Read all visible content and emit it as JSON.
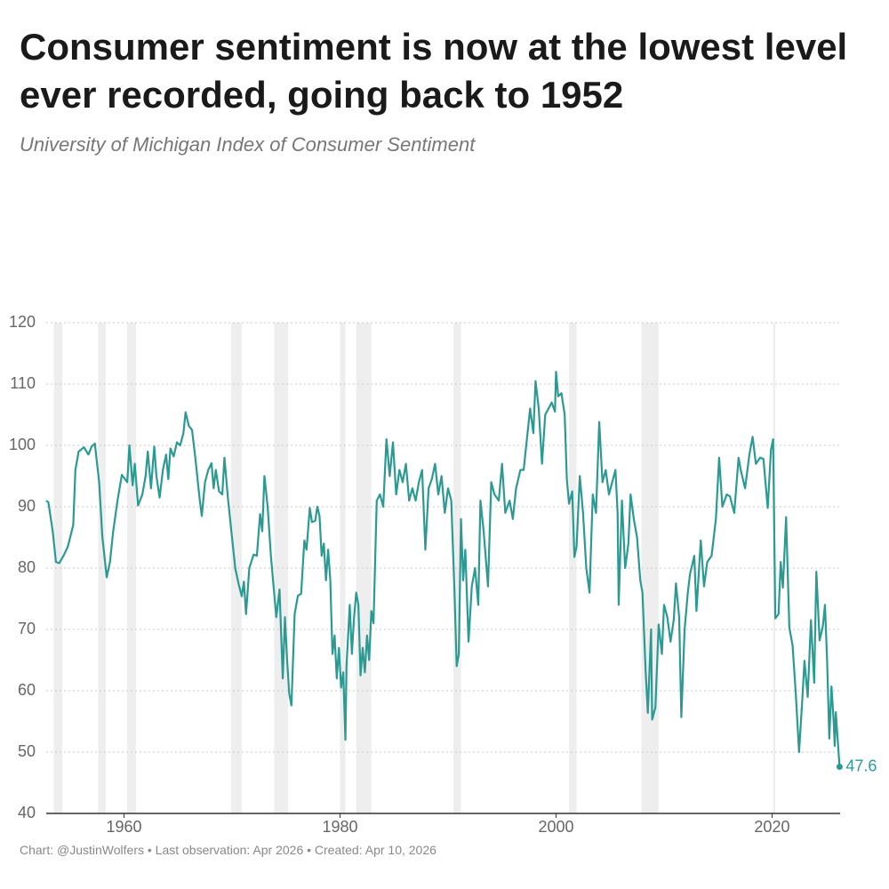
{
  "chart_data": {
    "type": "line",
    "title": "Consumer sentiment is now at the lowest level ever recorded, going back to 1952",
    "subtitle": "University of Michigan Index of Consumer Sentiment",
    "footer": "Chart: @JustinWolfers • Last observation: Apr 2026 • Created: Apr 10, 2026",
    "color": "#2b9a93",
    "grid": true,
    "xlim": [
      1952.8,
      2026.3
    ],
    "xticks": [
      1960,
      1980,
      2000,
      2020
    ],
    "ylim": [
      40,
      120
    ],
    "yticks": [
      40,
      50,
      60,
      70,
      80,
      90,
      100,
      110,
      120
    ],
    "recession_shading": [
      [
        1953.5,
        1954.3
      ],
      [
        1957.6,
        1958.3
      ],
      [
        1960.3,
        1961.1
      ],
      [
        1969.9,
        1970.9
      ],
      [
        1973.9,
        1975.2
      ],
      [
        1980.0,
        1980.5
      ],
      [
        1981.5,
        1982.9
      ],
      [
        1990.5,
        1991.2
      ],
      [
        2001.2,
        2001.9
      ],
      [
        2007.9,
        2009.5
      ],
      [
        2020.1,
        2020.3
      ]
    ],
    "x": [
      1952.8,
      1953.0,
      1953.4,
      1953.7,
      1954.0,
      1954.4,
      1954.8,
      1955.3,
      1955.5,
      1955.8,
      1956.3,
      1956.7,
      1957.0,
      1957.3,
      1957.7,
      1958.0,
      1958.4,
      1958.7,
      1959.0,
      1959.4,
      1959.8,
      1960.3,
      1960.5,
      1960.8,
      1961.0,
      1961.3,
      1961.7,
      1962.0,
      1962.2,
      1962.5,
      1962.8,
      1963.0,
      1963.3,
      1963.6,
      1963.9,
      1964.1,
      1964.3,
      1964.6,
      1964.9,
      1965.2,
      1965.5,
      1965.7,
      1966.0,
      1966.3,
      1966.6,
      1967.0,
      1967.2,
      1967.5,
      1967.8,
      1968.1,
      1968.3,
      1968.5,
      1968.8,
      1969.1,
      1969.3,
      1969.6,
      1970.0,
      1970.3,
      1970.6,
      1970.9,
      1971.1,
      1971.3,
      1971.6,
      1972.0,
      1972.3,
      1972.6,
      1972.8,
      1973.0,
      1973.3,
      1973.6,
      1973.9,
      1974.1,
      1974.4,
      1974.7,
      1974.9,
      1975.1,
      1975.3,
      1975.5,
      1975.8,
      1976.1,
      1976.4,
      1976.7,
      1976.9,
      1977.2,
      1977.4,
      1977.7,
      1977.9,
      1978.1,
      1978.3,
      1978.5,
      1978.7,
      1978.9,
      1979.1,
      1979.3,
      1979.5,
      1979.7,
      1979.9,
      1980.1,
      1980.3,
      1980.5,
      1980.6,
      1980.9,
      1981.1,
      1981.3,
      1981.5,
      1981.7,
      1981.9,
      1982.1,
      1982.3,
      1982.5,
      1982.7,
      1982.9,
      1983.1,
      1983.4,
      1983.7,
      1984.0,
      1984.3,
      1984.6,
      1984.9,
      1985.2,
      1985.5,
      1985.8,
      1986.1,
      1986.4,
      1986.7,
      1987.0,
      1987.3,
      1987.6,
      1987.9,
      1988.2,
      1988.5,
      1988.8,
      1989.1,
      1989.4,
      1989.7,
      1990.0,
      1990.3,
      1990.6,
      1990.8,
      1991.0,
      1991.2,
      1991.4,
      1991.6,
      1991.9,
      1992.2,
      1992.5,
      1992.8,
      1993.0,
      1993.3,
      1993.7,
      1994.0,
      1994.3,
      1994.7,
      1995.0,
      1995.3,
      1995.7,
      1996.0,
      1996.3,
      1996.7,
      1997.0,
      1997.3,
      1997.6,
      1997.9,
      1998.1,
      1998.4,
      1998.7,
      1999.0,
      1999.3,
      1999.6,
      1999.9,
      2000.0,
      2000.2,
      2000.5,
      2000.8,
      2001.0,
      2001.2,
      2001.5,
      2001.7,
      2001.9,
      2002.2,
      2002.5,
      2002.8,
      2003.1,
      2003.4,
      2003.7,
      2004.0,
      2004.3,
      2004.6,
      2004.9,
      2005.2,
      2005.5,
      2005.7,
      2005.8,
      2006.1,
      2006.4,
      2006.7,
      2006.9,
      2007.2,
      2007.5,
      2007.8,
      2008.0,
      2008.3,
      2008.5,
      2008.8,
      2008.9,
      2009.2,
      2009.5,
      2009.8,
      2010.0,
      2010.3,
      2010.6,
      2010.9,
      2011.1,
      2011.4,
      2011.6,
      2011.9,
      2012.2,
      2012.4,
      2012.8,
      2013.0,
      2013.4,
      2013.7,
      2014.0,
      2014.4,
      2014.8,
      2015.1,
      2015.4,
      2015.8,
      2016.1,
      2016.5,
      2016.9,
      2017.1,
      2017.5,
      2017.9,
      2018.2,
      2018.5,
      2018.9,
      2019.2,
      2019.6,
      2019.9,
      2020.1,
      2020.3,
      2020.6,
      2020.8,
      2021.0,
      2021.3,
      2021.6,
      2021.9,
      2022.2,
      2022.5,
      2022.8,
      2023.0,
      2023.3,
      2023.6,
      2023.9,
      2024.1,
      2024.4,
      2024.7,
      2024.9,
      2025.1,
      2025.3,
      2025.5,
      2025.7,
      2025.8,
      2025.9,
      2026.25
    ],
    "values": [
      91,
      90.7,
      86,
      81,
      80.8,
      82,
      83.5,
      87,
      96,
      99,
      99.7,
      98.5,
      99.8,
      100.3,
      94,
      85,
      78.5,
      81,
      86,
      91,
      95.2,
      94,
      100,
      93.5,
      97,
      90.2,
      92,
      95,
      99,
      93,
      99.8,
      95,
      91.5,
      96,
      98.5,
      94.5,
      99.5,
      98.2,
      100.5,
      100,
      102,
      105.4,
      103.2,
      102.5,
      98,
      91.3,
      88.5,
      94,
      96,
      97.1,
      93,
      96,
      92.5,
      92,
      98,
      91.8,
      85,
      80,
      77.5,
      75.4,
      77.8,
      72.5,
      80,
      82.2,
      82,
      88.8,
      86,
      95,
      90,
      82,
      76,
      72,
      76.5,
      62,
      72,
      65,
      59.5,
      57.6,
      72.5,
      75.5,
      75.8,
      84.5,
      83,
      89.8,
      87.5,
      87.7,
      90,
      88.5,
      82,
      84,
      78,
      83,
      78,
      66,
      69,
      62,
      67,
      60.5,
      63,
      52,
      64,
      74,
      66,
      72,
      76,
      74,
      62.5,
      67,
      63,
      69,
      65,
      73,
      71,
      91,
      92,
      90,
      101,
      95,
      100.5,
      92,
      96,
      94,
      97,
      91,
      93,
      91,
      94,
      96,
      83,
      93,
      94.5,
      97,
      92,
      95,
      89,
      93,
      91,
      76,
      64,
      66,
      88,
      78,
      83,
      68,
      77,
      80,
      74,
      91,
      86,
      77,
      94,
      92,
      91,
      97,
      89,
      91,
      88,
      93,
      96,
      96,
      101,
      106,
      102,
      110.5,
      106,
      97,
      105,
      106,
      107,
      105.5,
      112,
      108,
      108.5,
      105,
      94.5,
      90.5,
      92.5,
      81.8,
      83.5,
      95,
      89,
      80,
      76,
      92,
      89,
      103.8,
      94,
      96,
      92,
      94,
      96,
      89,
      74,
      91,
      80,
      84,
      92,
      88,
      85,
      78,
      76,
      63,
      56.4,
      70,
      55.3,
      57.3,
      70.8,
      66,
      74,
      72,
      68,
      71.6,
      77.5,
      72,
      55.7,
      69.9,
      76,
      79,
      82,
      73,
      84.5,
      77,
      81,
      82,
      88,
      98,
      90,
      92,
      91.7,
      89,
      98,
      96,
      93,
      98.5,
      101.4,
      97,
      98,
      97.8,
      89.8,
      99.3,
      101,
      71.8,
      72.5,
      81,
      76.8,
      88.3,
      70.3,
      67.4,
      59.4,
      50,
      58.6,
      64.9,
      59,
      71.5,
      61.3,
      79.4,
      68.2,
      70.5,
      74,
      64.7,
      52.2,
      60.7,
      55.1,
      51,
      56.5,
      47.6
    ]
  }
}
